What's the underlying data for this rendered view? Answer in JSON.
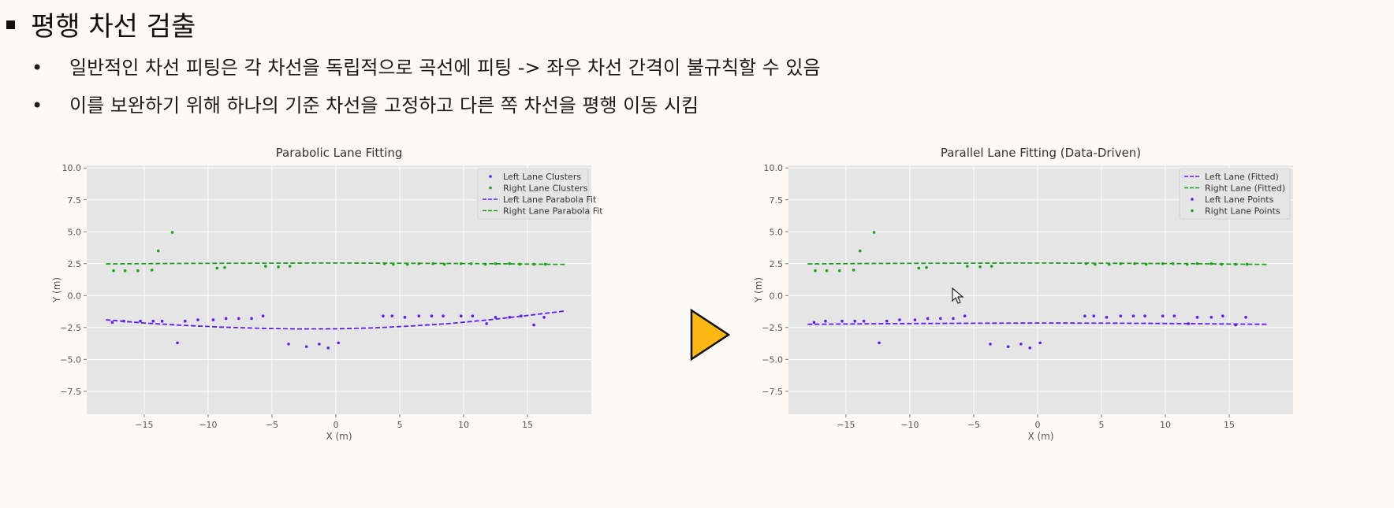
{
  "slide": {
    "title": "평행 차선 검출",
    "bullets": [
      "일반적인 차선 피팅은 각 차선을 독립적으로 곡선에 피팅 -> 좌우 차선 간격이 불규칙할 수 있음",
      "이를 보완하기 위해 하나의 기준 차선을 고정하고 다른 쪽 차선을 평행 이동 시킴"
    ],
    "bullet_glyph": "•"
  },
  "colors": {
    "left": "#5b1ff2",
    "right": "#1aa31a",
    "arrow_fill": "#fbb810",
    "plot_bg": "#e5e5e5"
  },
  "chart_data": [
    {
      "type": "scatter",
      "title": "Parabolic Lane Fitting",
      "xlabel": "X (m)",
      "ylabel": "Y (m)",
      "xlim": [
        -19.5,
        20
      ],
      "ylim": [
        -9.3,
        10.2
      ],
      "xticks": [
        -15,
        -10,
        -5,
        0,
        5,
        10,
        15
      ],
      "yticks": [
        -7.5,
        -5.0,
        -2.5,
        0.0,
        2.5,
        5.0,
        7.5,
        10.0
      ],
      "xtick_labels": [
        "−15",
        "−10",
        "−5",
        "0",
        "5",
        "10",
        "15"
      ],
      "ytick_labels": [
        "−7.5",
        "−5.0",
        "−2.5",
        "0.0",
        "2.5",
        "5.0",
        "7.5",
        "10.0"
      ],
      "grid": true,
      "legend_position": "top-right",
      "legend": [
        {
          "label": "Left Lane Clusters",
          "kind": "point",
          "color": "#5b1ff2"
        },
        {
          "label": "Right Lane Clusters",
          "kind": "point",
          "color": "#1aa31a"
        },
        {
          "label": "Left Lane Parabola Fit",
          "kind": "line",
          "color": "#5b1ff2"
        },
        {
          "label": "Right Lane Parabola Fit",
          "kind": "line",
          "color": "#1aa31a"
        }
      ],
      "series": [
        {
          "name": "Left Lane Clusters",
          "kind": "scatter",
          "color": "#5b1ff2",
          "x": [
            -17.5,
            -16.6,
            -15.3,
            -14.3,
            -13.6,
            -11.8,
            -10.8,
            -9.6,
            -8.6,
            -7.6,
            -6.6,
            -5.7,
            -12.4,
            -3.7,
            -2.3,
            -1.3,
            -0.6,
            0.2,
            3.7,
            4.4,
            5.4,
            6.5,
            7.5,
            8.4,
            9.8,
            10.7,
            11.8,
            12.5,
            13.6,
            14.5,
            15.5,
            16.3
          ],
          "y": [
            -2.1,
            -2.0,
            -2.0,
            -2.0,
            -2.0,
            -2.0,
            -1.9,
            -1.9,
            -1.8,
            -1.8,
            -1.8,
            -1.6,
            -3.7,
            -3.8,
            -4.0,
            -3.8,
            -4.1,
            -3.7,
            -1.6,
            -1.6,
            -1.7,
            -1.6,
            -1.6,
            -1.6,
            -1.6,
            -1.6,
            -2.2,
            -1.7,
            -1.7,
            -1.6,
            -2.3,
            -1.7
          ]
        },
        {
          "name": "Right Lane Clusters",
          "kind": "scatter",
          "color": "#1aa31a",
          "x": [
            -17.4,
            -16.5,
            -15.5,
            -14.4,
            -13.9,
            -12.8,
            -9.3,
            -8.7,
            -5.5,
            -4.5,
            -3.6,
            3.8,
            4.5,
            5.6,
            6.5,
            7.6,
            8.5,
            9.8,
            10.6,
            11.7,
            12.5,
            13.6,
            14.4,
            15.5,
            16.4
          ],
          "y": [
            1.95,
            1.95,
            1.95,
            2.0,
            3.5,
            4.95,
            2.15,
            2.2,
            2.3,
            2.25,
            2.3,
            2.5,
            2.45,
            2.45,
            2.5,
            2.5,
            2.45,
            2.5,
            2.5,
            2.45,
            2.5,
            2.5,
            2.45,
            2.45,
            2.45
          ]
        },
        {
          "name": "Left Lane Parabola Fit",
          "kind": "curve",
          "color": "#5b1ff2",
          "dashed": true,
          "x": [
            -18,
            -15,
            -12,
            -9,
            -6,
            -3,
            0,
            3,
            6,
            9,
            12,
            15,
            18
          ],
          "y": [
            -1.9,
            -2.15,
            -2.33,
            -2.47,
            -2.56,
            -2.61,
            -2.6,
            -2.53,
            -2.38,
            -2.18,
            -1.9,
            -1.56,
            -1.2
          ]
        },
        {
          "name": "Right Lane Parabola Fit",
          "kind": "curve",
          "color": "#1aa31a",
          "dashed": true,
          "x": [
            -18,
            -12,
            -6,
            0,
            6,
            12,
            18
          ],
          "y": [
            2.48,
            2.52,
            2.54,
            2.55,
            2.53,
            2.5,
            2.44
          ]
        }
      ]
    },
    {
      "type": "scatter",
      "title": "Parallel Lane Fitting (Data-Driven)",
      "xlabel": "X (m)",
      "ylabel": "Y (m)",
      "xlim": [
        -19.5,
        20
      ],
      "ylim": [
        -9.3,
        10.2
      ],
      "xticks": [
        -15,
        -10,
        -5,
        0,
        5,
        10,
        15
      ],
      "yticks": [
        -7.5,
        -5.0,
        -2.5,
        0.0,
        2.5,
        5.0,
        7.5,
        10.0
      ],
      "xtick_labels": [
        "−15",
        "−10",
        "−5",
        "0",
        "5",
        "10",
        "15"
      ],
      "ytick_labels": [
        "−7.5",
        "−5.0",
        "−2.5",
        "0.0",
        "2.5",
        "5.0",
        "7.5",
        "10.0"
      ],
      "grid": true,
      "legend_position": "top-right",
      "legend": [
        {
          "label": "Left Lane (Fitted)",
          "kind": "line",
          "color": "#5b1ff2"
        },
        {
          "label": "Right Lane (Fitted)",
          "kind": "line",
          "color": "#1aa31a"
        },
        {
          "label": "Left Lane Points",
          "kind": "point",
          "color": "#5b1ff2"
        },
        {
          "label": "Right Lane Points",
          "kind": "point",
          "color": "#1aa31a"
        }
      ],
      "series": [
        {
          "name": "Left Lane Points",
          "kind": "scatter",
          "color": "#5b1ff2",
          "x": [
            -17.5,
            -16.6,
            -15.3,
            -14.3,
            -13.6,
            -11.8,
            -10.8,
            -9.6,
            -8.6,
            -7.6,
            -6.6,
            -5.7,
            -12.4,
            -3.7,
            -2.3,
            -1.3,
            -0.6,
            0.2,
            3.7,
            4.4,
            5.4,
            6.5,
            7.5,
            8.4,
            9.8,
            10.7,
            11.8,
            12.5,
            13.6,
            14.5,
            15.5,
            16.3
          ],
          "y": [
            -2.1,
            -2.0,
            -2.0,
            -2.0,
            -2.0,
            -2.0,
            -1.9,
            -1.9,
            -1.8,
            -1.8,
            -1.8,
            -1.6,
            -3.7,
            -3.8,
            -4.0,
            -3.8,
            -4.1,
            -3.7,
            -1.6,
            -1.6,
            -1.7,
            -1.6,
            -1.6,
            -1.6,
            -1.6,
            -1.6,
            -2.2,
            -1.7,
            -1.7,
            -1.6,
            -2.3,
            -1.7
          ]
        },
        {
          "name": "Right Lane Points",
          "kind": "scatter",
          "color": "#1aa31a",
          "x": [
            -17.4,
            -16.5,
            -15.5,
            -14.4,
            -13.9,
            -12.8,
            -9.3,
            -8.7,
            -5.5,
            -4.5,
            -3.6,
            3.8,
            4.5,
            5.6,
            6.5,
            7.6,
            8.5,
            9.8,
            10.6,
            11.7,
            12.5,
            13.6,
            14.4,
            15.5,
            16.4
          ],
          "y": [
            1.95,
            1.95,
            1.95,
            2.0,
            3.5,
            4.95,
            2.15,
            2.2,
            2.3,
            2.25,
            2.3,
            2.5,
            2.45,
            2.45,
            2.5,
            2.5,
            2.45,
            2.5,
            2.5,
            2.45,
            2.5,
            2.5,
            2.45,
            2.45,
            2.45
          ]
        },
        {
          "name": "Left Lane (Fitted)",
          "kind": "curve",
          "color": "#5b1ff2",
          "dashed": true,
          "x": [
            -18,
            -12,
            -6,
            0,
            6,
            12,
            18
          ],
          "y": [
            -2.25,
            -2.2,
            -2.17,
            -2.15,
            -2.16,
            -2.2,
            -2.25
          ]
        },
        {
          "name": "Right Lane (Fitted)",
          "kind": "curve",
          "color": "#1aa31a",
          "dashed": true,
          "x": [
            -18,
            -12,
            -6,
            0,
            6,
            12,
            18
          ],
          "y": [
            2.48,
            2.52,
            2.54,
            2.55,
            2.53,
            2.5,
            2.44
          ]
        }
      ]
    }
  ]
}
